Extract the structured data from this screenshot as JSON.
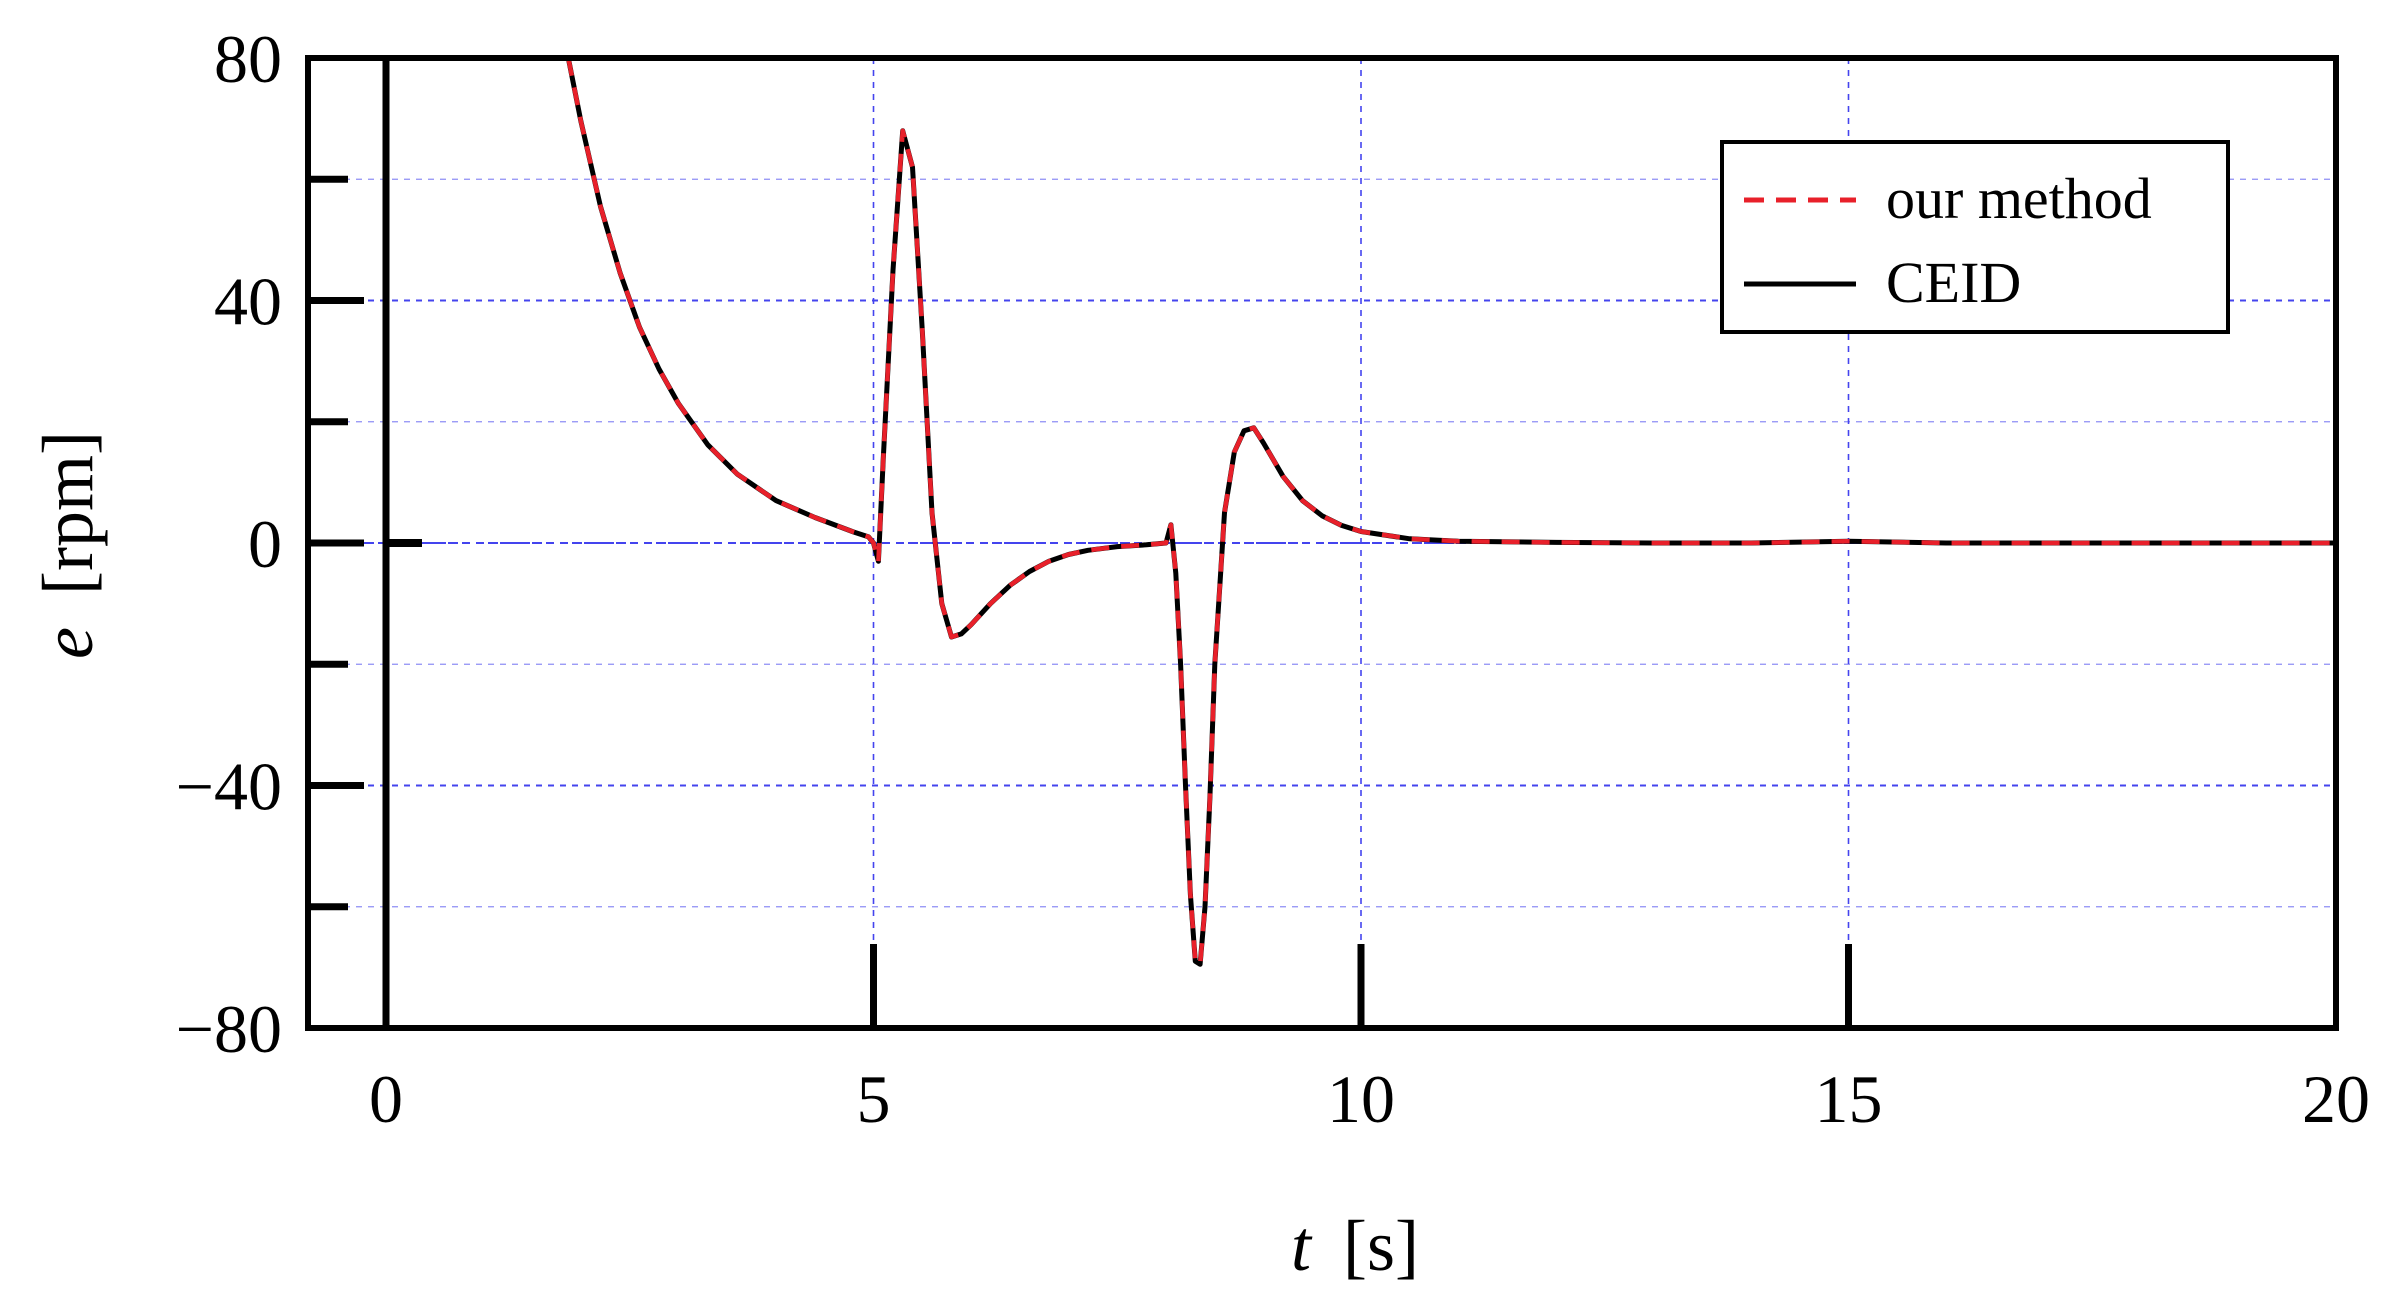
{
  "chart_data": {
    "type": "line",
    "xlabel": {
      "var": "t",
      "unit": "[s]"
    },
    "ylabel": {
      "var": "e",
      "unit": "[rpm]"
    },
    "xlim": [
      -0.8,
      20
    ],
    "ylim": [
      -80,
      80
    ],
    "x_ticks": [
      0,
      5,
      10,
      15,
      20
    ],
    "x_tick_labels": [
      "0",
      "5",
      "10",
      "15",
      "20"
    ],
    "y_ticks": [
      -80,
      -40,
      0,
      40,
      80
    ],
    "y_tick_labels": [
      "−80",
      "−40",
      "0",
      "40",
      "80"
    ],
    "grid": true,
    "grid_color": "#4444ee",
    "legend_position": "top-right",
    "series": [
      {
        "name": "our method",
        "style": "dashed",
        "color": "#e8202a",
        "x": [
          1.87,
          2.0,
          2.2,
          2.4,
          2.6,
          2.8,
          3.0,
          3.3,
          3.6,
          4.0,
          4.4,
          4.8,
          4.95,
          5.0,
          5.05,
          5.1,
          5.2,
          5.3,
          5.4,
          5.5,
          5.6,
          5.7,
          5.8,
          5.9,
          6.0,
          6.2,
          6.4,
          6.6,
          6.8,
          7.0,
          7.2,
          7.5,
          7.8,
          8.0,
          8.05,
          8.1,
          8.15,
          8.2,
          8.25,
          8.3,
          8.35,
          8.4,
          8.45,
          8.5,
          8.6,
          8.7,
          8.8,
          8.9,
          9.0,
          9.2,
          9.4,
          9.6,
          9.8,
          10.0,
          10.5,
          11.0,
          12.0,
          13.0,
          14.0,
          15.0,
          16.0,
          17.0,
          18.0,
          19.0,
          20.0
        ],
        "y": [
          80.0,
          69.5,
          55.5,
          44.6,
          35.6,
          28.7,
          23.0,
          16.2,
          11.4,
          7.0,
          4.2,
          1.8,
          1.0,
          0.0,
          -3.0,
          14.0,
          45.0,
          68.0,
          62.0,
          35.0,
          5.0,
          -10.0,
          -15.5,
          -15.0,
          -13.5,
          -10.0,
          -7.0,
          -4.7,
          -3.0,
          -1.9,
          -1.2,
          -0.6,
          -0.3,
          0.0,
          3.0,
          -5.0,
          -20.0,
          -40.0,
          -58.0,
          -69.0,
          -69.5,
          -60.0,
          -42.0,
          -20.0,
          5.0,
          15.0,
          18.5,
          19.0,
          16.5,
          11.0,
          7.0,
          4.5,
          2.9,
          1.9,
          0.7,
          0.3,
          0.1,
          0.0,
          0.0,
          0.3,
          0.0,
          0.0,
          0.0,
          0.0,
          0.0
        ]
      },
      {
        "name": "CEID",
        "style": "solid",
        "color": "#000000",
        "x": [
          1.87,
          2.0,
          2.2,
          2.4,
          2.6,
          2.8,
          3.0,
          3.3,
          3.6,
          4.0,
          4.4,
          4.8,
          4.95,
          5.0,
          5.05,
          5.1,
          5.2,
          5.3,
          5.4,
          5.5,
          5.6,
          5.7,
          5.8,
          5.9,
          6.0,
          6.2,
          6.4,
          6.6,
          6.8,
          7.0,
          7.2,
          7.5,
          7.8,
          8.0,
          8.05,
          8.1,
          8.15,
          8.2,
          8.25,
          8.3,
          8.35,
          8.4,
          8.45,
          8.5,
          8.6,
          8.7,
          8.8,
          8.9,
          9.0,
          9.2,
          9.4,
          9.6,
          9.8,
          10.0,
          10.5,
          11.0,
          12.0,
          13.0,
          14.0,
          15.0,
          16.0,
          17.0,
          18.0,
          19.0,
          20.0
        ],
        "y": [
          80.0,
          69.5,
          55.5,
          44.6,
          35.6,
          28.7,
          23.0,
          16.2,
          11.4,
          7.0,
          4.2,
          1.8,
          1.0,
          0.0,
          -3.0,
          14.0,
          45.0,
          68.0,
          62.0,
          35.0,
          5.0,
          -10.0,
          -15.5,
          -15.0,
          -13.5,
          -10.0,
          -7.0,
          -4.7,
          -3.0,
          -1.9,
          -1.2,
          -0.6,
          -0.3,
          0.0,
          3.0,
          -5.0,
          -20.0,
          -40.0,
          -58.0,
          -69.0,
          -69.5,
          -60.0,
          -42.0,
          -20.0,
          5.0,
          15.0,
          18.5,
          19.0,
          16.5,
          11.0,
          7.0,
          4.5,
          2.9,
          1.9,
          0.7,
          0.3,
          0.1,
          0.0,
          0.0,
          0.3,
          0.0,
          0.0,
          0.0,
          0.0,
          0.0
        ]
      }
    ]
  }
}
